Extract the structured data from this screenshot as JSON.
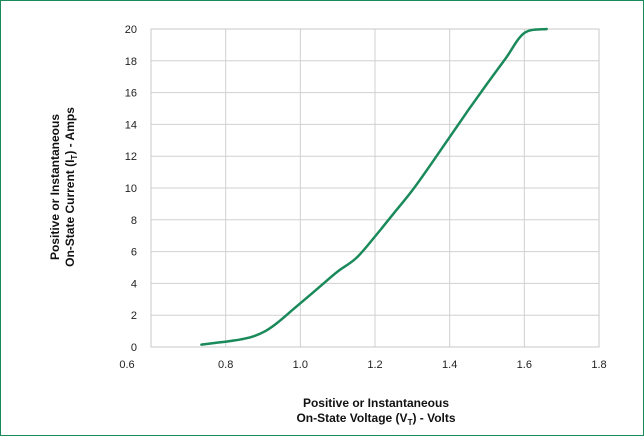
{
  "chart_data": {
    "type": "line",
    "title": "",
    "xlabel": {
      "line1": "Positive or Instantaneous",
      "line2_prefix": "On-State Voltage (V",
      "line2_sub": "T",
      "line2_suffix": ") - Volts"
    },
    "ylabel": {
      "line1": "Positive or Instantaneous",
      "line2_prefix": "On-State Current (I",
      "line2_sub": "T",
      "line2_suffix": ") - Amps"
    },
    "xlim": [
      0.6,
      1.8
    ],
    "ylim": [
      0,
      20
    ],
    "xticks": [
      "0.6",
      "0.8",
      "1.0",
      "1.2",
      "1.4",
      "1.6",
      "1.8"
    ],
    "yticks": [
      "0",
      "2",
      "4",
      "6",
      "8",
      "10",
      "12",
      "14",
      "16",
      "18",
      "20"
    ],
    "grid": true,
    "line_color": "#1a8a5a",
    "series": [
      {
        "x": [
          0.735,
          0.78,
          0.82,
          0.85,
          0.88,
          0.91,
          0.94,
          0.98,
          1.02,
          1.06,
          1.1,
          1.15,
          1.2,
          1.25,
          1.3,
          1.35,
          1.4,
          1.45,
          1.5,
          1.55,
          1.6,
          1.66
        ],
        "y": [
          0.15,
          0.28,
          0.4,
          0.52,
          0.72,
          1.05,
          1.55,
          2.35,
          3.15,
          3.95,
          4.75,
          5.6,
          6.95,
          8.4,
          9.85,
          11.5,
          13.2,
          14.9,
          16.55,
          18.15,
          19.75,
          20.0
        ]
      }
    ]
  }
}
